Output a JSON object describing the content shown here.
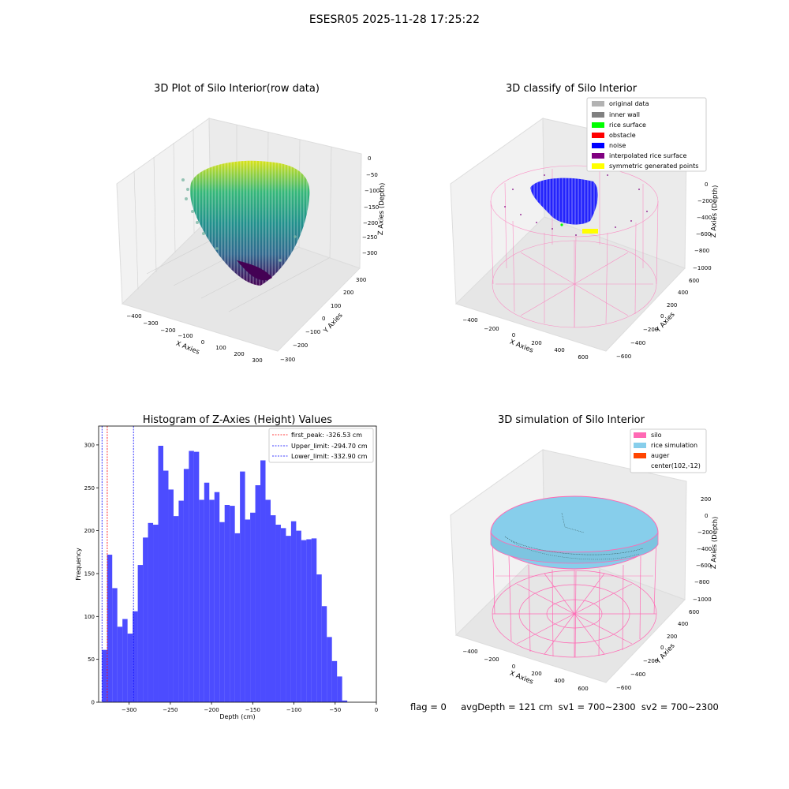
{
  "figure": {
    "suptitle": "ESESR05 2025-11-28 17:25:22",
    "status_line": "flag = 0     avgDepth = 121 cm  sv1 = 700~2300  sv2 = 700~2300"
  },
  "panels": {
    "raw": {
      "title": "3D Plot of Silo Interior(row data)",
      "xlabel": "X Axies",
      "ylabel": "Y Axies",
      "zlabel": "Z Axies (Depth)",
      "xticks": [
        "−400",
        "−300",
        "−200",
        "−100",
        "0",
        "100",
        "200",
        "300"
      ],
      "yticks": [
        "−300",
        "−200",
        "−100",
        "0",
        "100",
        "200",
        "300"
      ],
      "zticks": [
        "0",
        "−50",
        "−100",
        "−150",
        "−200",
        "−250",
        "−300"
      ]
    },
    "classify": {
      "title": "3D classify of Silo Interior",
      "xlabel": "X Axies",
      "ylabel": "Y Axies",
      "zlabel": "Z Axies (Depth)",
      "xticks": [
        "−400",
        "−200",
        "0",
        "200",
        "400",
        "600"
      ],
      "yticks": [
        "−600",
        "−400",
        "−200",
        "0",
        "200",
        "400",
        "600"
      ],
      "zticks": [
        "0",
        "−200",
        "−400",
        "−600",
        "−800",
        "−1000"
      ],
      "legend": [
        {
          "label": "original data",
          "color": "#b3b3b3"
        },
        {
          "label": "inner wall",
          "color": "#808080"
        },
        {
          "label": "rice surface",
          "color": "#00ff00"
        },
        {
          "label": "obstacle",
          "color": "#ff0000"
        },
        {
          "label": "noise",
          "color": "#0000ff"
        },
        {
          "label": "interpolated rice surface",
          "color": "#800080"
        },
        {
          "label": "symmetric generated points",
          "color": "#ffff00"
        }
      ]
    },
    "simulation": {
      "title": "3D simulation of Silo Interior",
      "xlabel": "X Axies",
      "ylabel": "Y Axies",
      "zlabel": "Z Axies (Depth)",
      "xticks": [
        "−400",
        "−200",
        "0",
        "200",
        "400",
        "600"
      ],
      "yticks": [
        "−600",
        "−400",
        "−200",
        "0",
        "200",
        "400",
        "600"
      ],
      "zticks": [
        "200",
        "0",
        "−200",
        "−400",
        "−600",
        "−800",
        "−1000"
      ],
      "legend": [
        {
          "label": "silo",
          "color": "#ff69b4"
        },
        {
          "label": "rice simulation",
          "color": "#87ceeb"
        },
        {
          "label": "auger",
          "color": "#ff4500"
        },
        {
          "label": "center(102,-12)",
          "color": "none"
        }
      ]
    }
  },
  "chart_data": [
    {
      "type": "bar",
      "title": "Histogram of Z-Axies (Height) Values",
      "xlabel": "Depth (cm)",
      "ylabel": "Frequency",
      "xlim": [
        -337,
        0
      ],
      "ylim": [
        0,
        322
      ],
      "xticks": [
        -300,
        -250,
        -200,
        -150,
        -100,
        -50,
        0
      ],
      "yticks": [
        0,
        50,
        100,
        150,
        200,
        250,
        300
      ],
      "bar_color": "#0000ff",
      "bin_width": 6.2,
      "bin_start": -332.9,
      "values": [
        61,
        172,
        133,
        88,
        97,
        80,
        106,
        160,
        192,
        209,
        207,
        299,
        270,
        248,
        217,
        235,
        272,
        293,
        292,
        236,
        256,
        236,
        245,
        210,
        230,
        229,
        197,
        269,
        213,
        221,
        253,
        282,
        236,
        218,
        207,
        203,
        194,
        211,
        200,
        189,
        190,
        191,
        149,
        112,
        76,
        48,
        30,
        2
      ],
      "vlines": [
        {
          "label": "first_peak: -326.53 cm",
          "x": -326.53,
          "color": "#ff0000",
          "style": "dashed"
        },
        {
          "label": "Upper_limit: -294.70 cm",
          "x": -294.7,
          "color": "#0000ff",
          "style": "dashed"
        },
        {
          "label": "Lower_limit: -332.90 cm",
          "x": -332.9,
          "color": "#0000ff",
          "style": "dashed"
        }
      ],
      "legend_position": "upper right"
    }
  ]
}
